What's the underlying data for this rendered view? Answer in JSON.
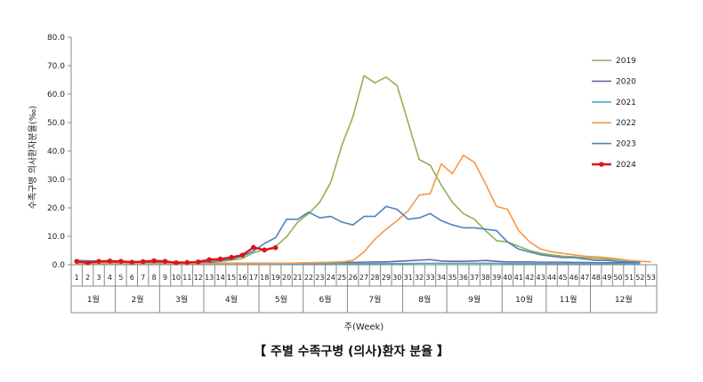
{
  "caption": "【 주별 수족구병 (의사)환자 분율 】",
  "chart_data": {
    "type": "line",
    "title": "",
    "ylabel": "수족구병 의사환자분율(‰)",
    "xlabel": "주(Week)",
    "ylim": [
      0,
      80
    ],
    "yticks": [
      "0.0",
      "10.0",
      "20.0",
      "30.0",
      "40.0",
      "50.0",
      "60.0",
      "70.0",
      "80.0"
    ],
    "grid": false,
    "legend_position": "right",
    "x": [
      1,
      2,
      3,
      4,
      5,
      6,
      7,
      8,
      9,
      10,
      11,
      12,
      13,
      14,
      15,
      16,
      17,
      18,
      19,
      20,
      21,
      22,
      23,
      24,
      25,
      26,
      27,
      28,
      29,
      30,
      31,
      32,
      33,
      34,
      35,
      36,
      37,
      38,
      39,
      40,
      41,
      42,
      43,
      44,
      45,
      46,
      47,
      48,
      49,
      50,
      51,
      52,
      53
    ],
    "months": [
      {
        "label": "1월",
        "from": 1,
        "to": 4
      },
      {
        "label": "2월",
        "from": 5,
        "to": 8
      },
      {
        "label": "3월",
        "from": 9,
        "to": 12
      },
      {
        "label": "4월",
        "from": 13,
        "to": 17
      },
      {
        "label": "5월",
        "from": 18,
        "to": 21
      },
      {
        "label": "6월",
        "from": 22,
        "to": 25
      },
      {
        "label": "7월",
        "from": 26,
        "to": 30
      },
      {
        "label": "8월",
        "from": 31,
        "to": 34
      },
      {
        "label": "9월",
        "from": 35,
        "to": 39
      },
      {
        "label": "10월",
        "from": 40,
        "to": 43
      },
      {
        "label": "11월",
        "from": 44,
        "to": 47
      },
      {
        "label": "12월",
        "from": 48,
        "to": 53
      }
    ],
    "series": [
      {
        "name": "2019",
        "color": "#8db255",
        "marker": false,
        "values": [
          1.2,
          1.0,
          1.1,
          1.0,
          1.0,
          1.0,
          1.0,
          1.0,
          0.9,
          0.9,
          0.9,
          1.0,
          1.0,
          1.2,
          1.6,
          2.2,
          4.2,
          5.3,
          6.4,
          9.8,
          15.0,
          18.0,
          22.0,
          29.0,
          42.0,
          52.0,
          66.5,
          64.0,
          66.0,
          63.0,
          50.0,
          37.0,
          35.0,
          28.0,
          22.0,
          18.0,
          16.0,
          12.0,
          8.5,
          8.0,
          6.5,
          5.0,
          4.0,
          3.5,
          3.0,
          2.8,
          2.5,
          2.2,
          2.0,
          1.8,
          1.5,
          1.2,
          null
        ]
      },
      {
        "name": "2020",
        "color": "#7560a8",
        "marker": false,
        "values": [
          1.0,
          1.0,
          0.9,
          0.9,
          0.8,
          0.8,
          0.7,
          0.7,
          0.7,
          0.6,
          0.6,
          0.6,
          0.6,
          0.5,
          0.5,
          0.5,
          0.5,
          0.5,
          0.5,
          0.5,
          0.5,
          0.6,
          0.6,
          0.7,
          0.8,
          0.8,
          0.9,
          1.0,
          1.0,
          1.2,
          1.4,
          1.6,
          1.8,
          1.3,
          1.2,
          1.2,
          1.3,
          1.5,
          1.2,
          1.0,
          1.0,
          1.0,
          0.9,
          0.9,
          0.9,
          0.8,
          0.8,
          0.7,
          0.7,
          0.7,
          0.7,
          0.6,
          null
        ]
      },
      {
        "name": "2021",
        "color": "#4bacc6",
        "marker": false,
        "values": [
          0.3,
          0.3,
          0.3,
          0.3,
          0.3,
          0.3,
          0.3,
          0.3,
          0.3,
          0.3,
          0.3,
          0.3,
          0.3,
          0.3,
          0.3,
          0.3,
          0.3,
          0.3,
          0.3,
          0.3,
          0.4,
          0.4,
          0.4,
          0.4,
          0.4,
          0.4,
          0.4,
          0.4,
          0.4,
          0.4,
          0.4,
          0.5,
          0.5,
          0.5,
          0.5,
          0.5,
          0.5,
          0.5,
          0.5,
          0.4,
          0.4,
          0.4,
          0.4,
          0.4,
          0.4,
          0.4,
          0.4,
          0.4,
          0.3,
          0.3,
          0.3,
          0.3,
          null
        ]
      },
      {
        "name": "2022",
        "color": "#f79646",
        "marker": false,
        "values": [
          0.4,
          0.4,
          0.4,
          0.4,
          0.4,
          0.4,
          0.4,
          0.4,
          0.4,
          0.4,
          0.4,
          0.4,
          0.4,
          0.4,
          0.4,
          0.4,
          0.4,
          0.4,
          0.5,
          0.5,
          0.6,
          0.7,
          0.8,
          0.9,
          1.0,
          1.5,
          4.5,
          9.0,
          12.5,
          15.5,
          19.0,
          24.5,
          25.0,
          35.5,
          32.0,
          38.5,
          36.0,
          28.5,
          20.5,
          19.5,
          12.0,
          8.0,
          5.5,
          4.5,
          4.0,
          3.5,
          3.0,
          2.8,
          2.5,
          2.0,
          1.5,
          1.2,
          1.0
        ]
      },
      {
        "name": "2023",
        "color": "#4f81bd",
        "marker": false,
        "values": [
          1.5,
          1.4,
          1.3,
          1.2,
          1.2,
          1.1,
          1.0,
          1.0,
          1.0,
          0.9,
          0.9,
          0.9,
          1.0,
          1.5,
          2.0,
          3.0,
          4.8,
          7.5,
          9.5,
          16.0,
          16.0,
          18.5,
          16.5,
          17.0,
          15.0,
          14.0,
          17.0,
          17.0,
          20.5,
          19.5,
          16.0,
          16.5,
          18.0,
          15.5,
          14.0,
          13.0,
          13.0,
          12.5,
          12.0,
          8.0,
          5.5,
          4.5,
          3.5,
          3.0,
          2.5,
          2.5,
          2.0,
          1.5,
          1.5,
          1.2,
          1.0,
          0.8,
          null
        ]
      },
      {
        "name": "2024",
        "color": "#d9161b",
        "marker": true,
        "values": [
          1.2,
          0.7,
          1.2,
          1.3,
          1.2,
          0.9,
          1.1,
          1.4,
          1.2,
          0.7,
          0.8,
          1.0,
          1.8,
          2.0,
          2.6,
          3.4,
          6.1,
          5.2,
          6.0,
          null,
          null,
          null,
          null,
          null,
          null,
          null,
          null,
          null,
          null,
          null,
          null,
          null,
          null,
          null,
          null,
          null,
          null,
          null,
          null,
          null,
          null,
          null,
          null,
          null,
          null,
          null,
          null,
          null,
          null,
          null,
          null,
          null,
          null
        ]
      }
    ]
  }
}
